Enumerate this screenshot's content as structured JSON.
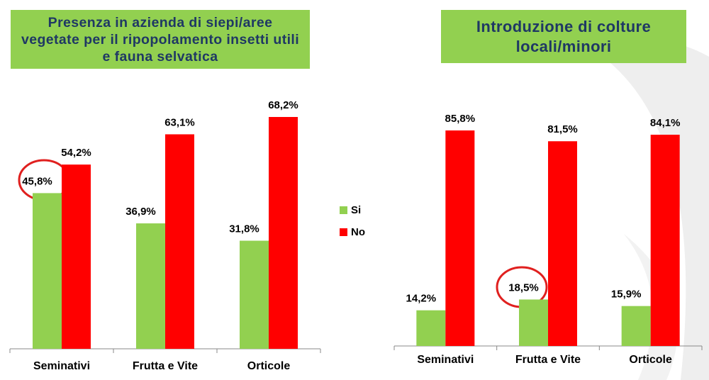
{
  "chart_data": [
    {
      "type": "bar",
      "title": "Presenza in azienda di siepi/aree vegetate per il ripopolamento insetti utili e fauna selvatica",
      "categories": [
        "Seminativi",
        "Frutta e Vite",
        "Orticole"
      ],
      "series": [
        {
          "name": "Si",
          "color": "#92d050",
          "values": [
            45.8,
            36.9,
            31.8
          ],
          "value_labels": [
            "45,8%",
            "36,9%",
            "31,8%"
          ]
        },
        {
          "name": "No",
          "color": "#ff0000",
          "values": [
            54.2,
            63.1,
            68.2
          ],
          "value_labels": [
            "54,2%",
            "63,1%",
            "68,2%"
          ]
        }
      ]
    },
    {
      "type": "bar",
      "title": "Introduzione di colture locali/minori",
      "categories": [
        "Seminativi",
        "Frutta e Vite",
        "Orticole"
      ],
      "series": [
        {
          "color": "#92d050",
          "values": [
            14.2,
            18.5,
            15.9
          ],
          "value_labels": [
            "14,2%",
            "18,5%",
            "15,9%"
          ]
        },
        {
          "color": "#ff0000",
          "values": [
            85.8,
            81.5,
            84.1
          ],
          "value_labels": [
            "85,8%",
            "81,5%",
            "84,1%"
          ]
        }
      ]
    }
  ]
}
